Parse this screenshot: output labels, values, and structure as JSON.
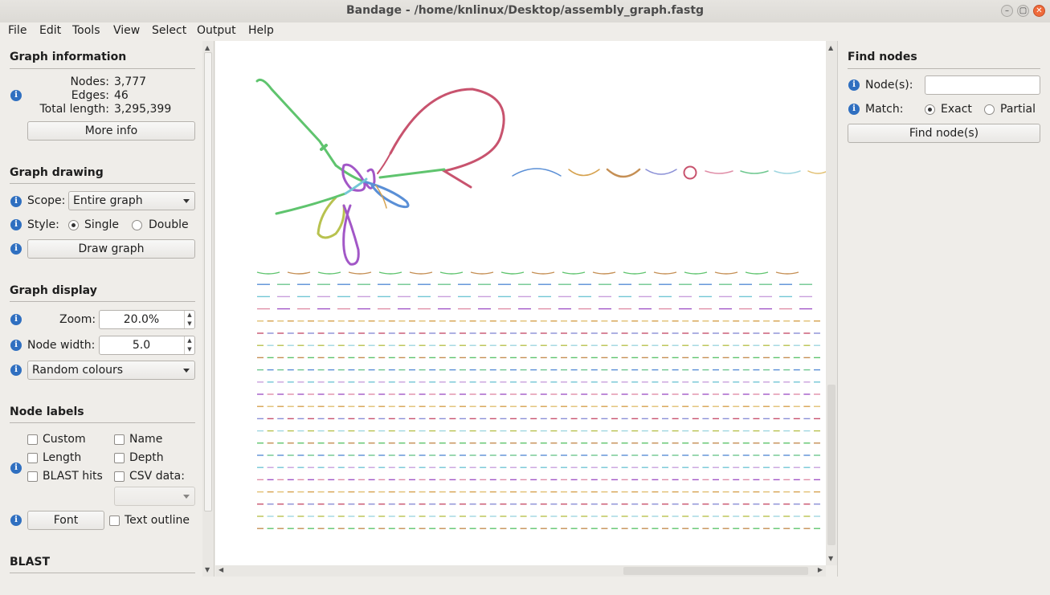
{
  "window": {
    "title": "Bandage - /home/knlinux/Desktop/assembly_graph.fastg"
  },
  "menu": [
    "File",
    "Edit",
    "Tools",
    "View",
    "Select",
    "Output",
    "Help"
  ],
  "graph_information": {
    "title": "Graph information",
    "nodes_label": "Nodes:",
    "nodes_value": "3,777",
    "edges_label": "Edges:",
    "edges_value": "46",
    "length_label": "Total length:",
    "length_value": "3,295,399",
    "more_info": "More info"
  },
  "graph_drawing": {
    "title": "Graph drawing",
    "scope_label": "Scope:",
    "scope_value": "Entire graph",
    "style_label": "Style:",
    "style_single": "Single",
    "style_double": "Double",
    "style_selected": "Single",
    "draw_button": "Draw graph"
  },
  "graph_display": {
    "title": "Graph display",
    "zoom_label": "Zoom:",
    "zoom_value": "20.0%",
    "node_width_label": "Node width:",
    "node_width_value": "5.0",
    "colour_scheme": "Random colours"
  },
  "node_labels": {
    "title": "Node labels",
    "custom": "Custom",
    "name": "Name",
    "length": "Length",
    "depth": "Depth",
    "blast_hits": "BLAST hits",
    "csv_data": "CSV data:",
    "font_button": "Font",
    "text_outline": "Text outline"
  },
  "blast": {
    "title": "BLAST"
  },
  "find_nodes": {
    "title": "Find nodes",
    "nodes_label": "Node(s):",
    "nodes_value": "",
    "match_label": "Match:",
    "exact": "Exact",
    "partial": "Partial",
    "match_selected": "Exact",
    "find_button": "Find node(s)"
  },
  "graph_palette": [
    "#5fc46e",
    "#c8536e",
    "#a257c7",
    "#5a8fd6",
    "#b8c24f",
    "#d6a24f",
    "#73c7d6",
    "#c58f54",
    "#8a8fd6",
    "#e08fa8",
    "#6ec78f",
    "#9fd6e0",
    "#e2c073",
    "#c9a0dc"
  ]
}
